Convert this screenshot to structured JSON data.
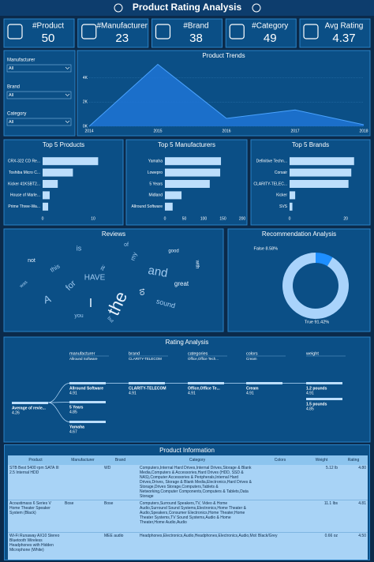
{
  "header": {
    "title": "Product Rating Analysis"
  },
  "kpis": [
    {
      "label": "#Product",
      "value": 50
    },
    {
      "label": "#Manufacturer",
      "value": 23
    },
    {
      "label": "#Brand",
      "value": 38
    },
    {
      "label": "#Category",
      "value": 49
    },
    {
      "label": "Avg Rating",
      "value": 4.37
    }
  ],
  "filters": [
    {
      "label": "Manufacturer",
      "value": "All"
    },
    {
      "label": "Brand",
      "value": "All"
    },
    {
      "label": "Category",
      "value": "All"
    }
  ],
  "chart_data": [
    {
      "type": "area",
      "title": "Product Trends",
      "x": [
        2014,
        2015,
        2016,
        2017,
        2018
      ],
      "values": [
        0,
        5100,
        650,
        1350,
        130
      ],
      "color": "#1f74d6",
      "xlim": [
        2014,
        2018
      ],
      "xticks": [
        2014,
        2015,
        2016,
        2017,
        2018
      ],
      "ylim": [
        0,
        5200
      ],
      "yticks": [
        {
          "value": 0,
          "label": "0K"
        },
        {
          "value": 2000,
          "label": "2K"
        },
        {
          "value": 4000,
          "label": "4K"
        }
      ]
    },
    {
      "type": "hbar",
      "title": "Top 5 Products",
      "categories": [
        "CRX-322 CD Re...",
        "Toshiba Micro C...",
        "Kicker 41KSBT2...",
        "House of Marle...",
        "Prime Three-Wa..."
      ],
      "values": [
        11,
        6,
        3,
        1.4,
        1.1
      ],
      "color": "#bcdefc",
      "xlim": [
        0,
        15
      ],
      "xticks": [
        0,
        10
      ]
    },
    {
      "type": "hbar",
      "title": "Top 5 Manufacturers",
      "categories": [
        "Yamaha",
        "Lowepro",
        "5 Years",
        "Midland",
        "Allround Software"
      ],
      "values": [
        145,
        143,
        116,
        43,
        20
      ],
      "color": "#bcdefc",
      "xlim": [
        0,
        200
      ],
      "xticks": [
        0,
        50,
        100,
        150,
        200
      ]
    },
    {
      "type": "hbar",
      "title": "Top 5 Brands",
      "categories": [
        "Definitive Techn...",
        "Corsair",
        "CLARITY-TELEC...",
        "Kicker",
        "SVS"
      ],
      "values": [
        23,
        22,
        21,
        2,
        1
      ],
      "color": "#bcdefc",
      "xlim": [
        0,
        27
      ],
      "xticks": [
        0,
        20
      ]
    },
    {
      "type": "donut",
      "title": "Recommendation Analysis",
      "categories": [
        "False",
        "True"
      ],
      "values": [
        8.58,
        91.42
      ],
      "value_labels": [
        "8.58%",
        "91.42%"
      ],
      "colors": [
        "#1e8fff",
        "#a9d3fb"
      ]
    }
  ],
  "reviews": {
    "title": "Reviews",
    "words": [
      "the",
      "and",
      "is",
      "I",
      "A",
      "for",
      "to",
      "it",
      "this",
      "great",
      "HAVE",
      "my",
      "not",
      "sound",
      "of",
      "with",
      "was",
      "you",
      "good",
      "but"
    ]
  },
  "rating_analysis": {
    "title": "Rating Analysis",
    "levels": [
      {
        "field": "manufacturer",
        "filter": "Allround Software"
      },
      {
        "field": "brand",
        "filter": "CLARITY-TELECOM"
      },
      {
        "field": "categories",
        "filter": "Office,Office Tech..."
      },
      {
        "field": "colors",
        "filter": "Cream"
      },
      {
        "field": "weight"
      }
    ],
    "root": {
      "label": "Average of revie...",
      "value": 4.26
    },
    "columns": [
      [
        {
          "label": "Allround Software",
          "value": 4.91
        },
        {
          "label": "5 Years",
          "value": 4.85
        },
        {
          "label": "Yamaha",
          "value": 4.67
        }
      ],
      [
        {
          "label": "CLARITY-TELECOM",
          "value": 4.91
        }
      ],
      [
        {
          "label": "Office,Office Te...",
          "value": 4.91
        }
      ],
      [
        {
          "label": "Cream",
          "value": 4.91
        }
      ],
      [
        {
          "label": "1.2 pounds",
          "value": 4.91
        },
        {
          "label": "1.5 pounds",
          "value": 4.85
        }
      ]
    ]
  },
  "product_info": {
    "title": "Product Information",
    "columns": [
      "Product",
      "Manufacturer",
      "Brand",
      "Category",
      "Colors",
      "Weight",
      "Rating"
    ],
    "rows": [
      [
        "STB Best 5400 rpm SATA III 2.5 Internal HDD",
        "",
        "WD",
        "Computers,Internal Hard Drives,Internal Drives,Storage & Blank Media,Computers & Accessories,Hard Drives (HDD, SSD & NAS),Computer Accessories & Peripherals,Internal Hard Drives,Drives, Storage & Blank Media,Electronics,Hard Drives & Storage,Drives Storage,Computers,Tablets & Networking,Computer Components,Computers & Tablets,Data Storage",
        "",
        "5.12 lb",
        "4.80"
      ],
      [
        "Acoustimass 6 Series V Home Theater Speaker System (Black)",
        "Bose",
        "Bose",
        "Computers,Surround Speakers,TV, Video & Home Audio,Surround Sound Systems,Electronics,Home Theater & Audio,Speakers,Consumer Electronics,Home Theater,Home Theater Systems,TV Sound Systems,Audio & Home Theater,Home Audio,Audio",
        "",
        "11.1 lbs",
        "4.81"
      ],
      [
        "Wi-Fi Runaway AX10 Stereo Bluetooth Wireless Headphones with Hidden Microphone (White)",
        "",
        "MEE audio",
        "Headphones,Electronics,Audio,Headphones,Electronics,Audio,Mobile",
        "Black/Grey",
        "0.66 oz",
        "4.50"
      ]
    ]
  }
}
